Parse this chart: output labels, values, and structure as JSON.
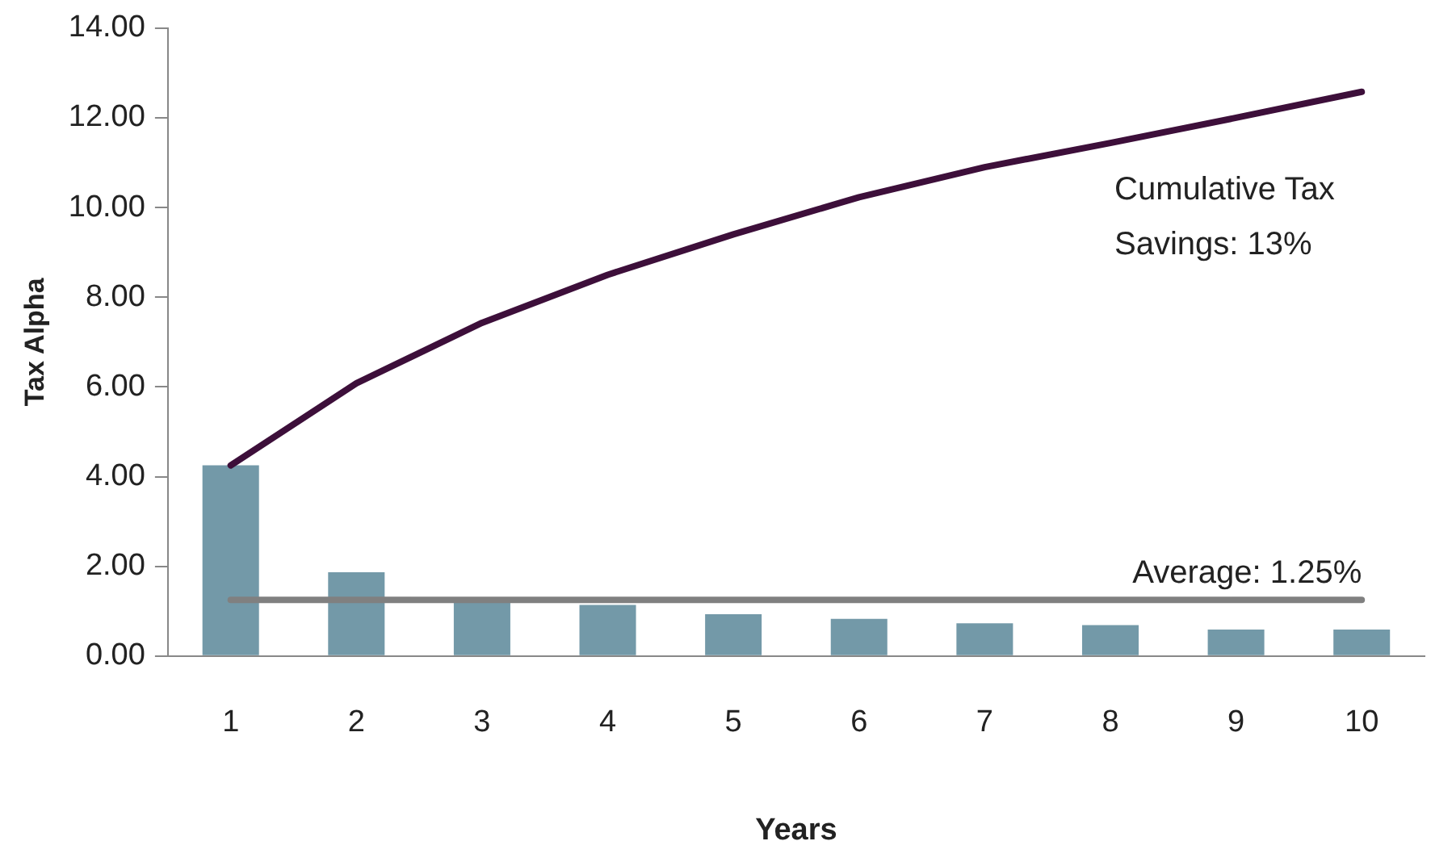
{
  "chart_data": {
    "type": "bar",
    "xlabel": "Years",
    "ylabel": "Tax Alpha",
    "categories": [
      "1",
      "2",
      "3",
      "4",
      "5",
      "6",
      "7",
      "8",
      "9",
      "10"
    ],
    "series": [
      {
        "color": "#7399a8",
        "values": [
          4.25,
          1.87,
          1.3,
          1.14,
          0.93,
          0.83,
          0.73,
          0.69,
          0.59,
          0.59
        ]
      },
      {
        "type": "line",
        "color": "#3d0f3a",
        "values": [
          4.25,
          6.08,
          7.43,
          8.5,
          9.4,
          10.23,
          10.9,
          11.44,
          12.0,
          12.58
        ]
      }
    ],
    "ylim": [
      0,
      14
    ],
    "yticks": [
      {
        "value": 0,
        "label": "0.00"
      },
      {
        "value": 2,
        "label": "2.00"
      },
      {
        "value": 4,
        "label": "4.00"
      },
      {
        "value": 6,
        "label": "6.00"
      },
      {
        "value": 8,
        "label": "8.00"
      },
      {
        "value": 10,
        "label": "10.00"
      },
      {
        "value": 12,
        "label": "12.00"
      },
      {
        "value": 14,
        "label": "14.00"
      }
    ],
    "ref_lines": [
      {
        "axis": "y",
        "value": 1.25,
        "label": "Average: 1.25%",
        "color": "#808080"
      }
    ],
    "annotations": [
      "Cumulative Tax\nSavings: 13%"
    ],
    "grid": false,
    "legend": false,
    "marker": "none",
    "line_style": "solid"
  }
}
